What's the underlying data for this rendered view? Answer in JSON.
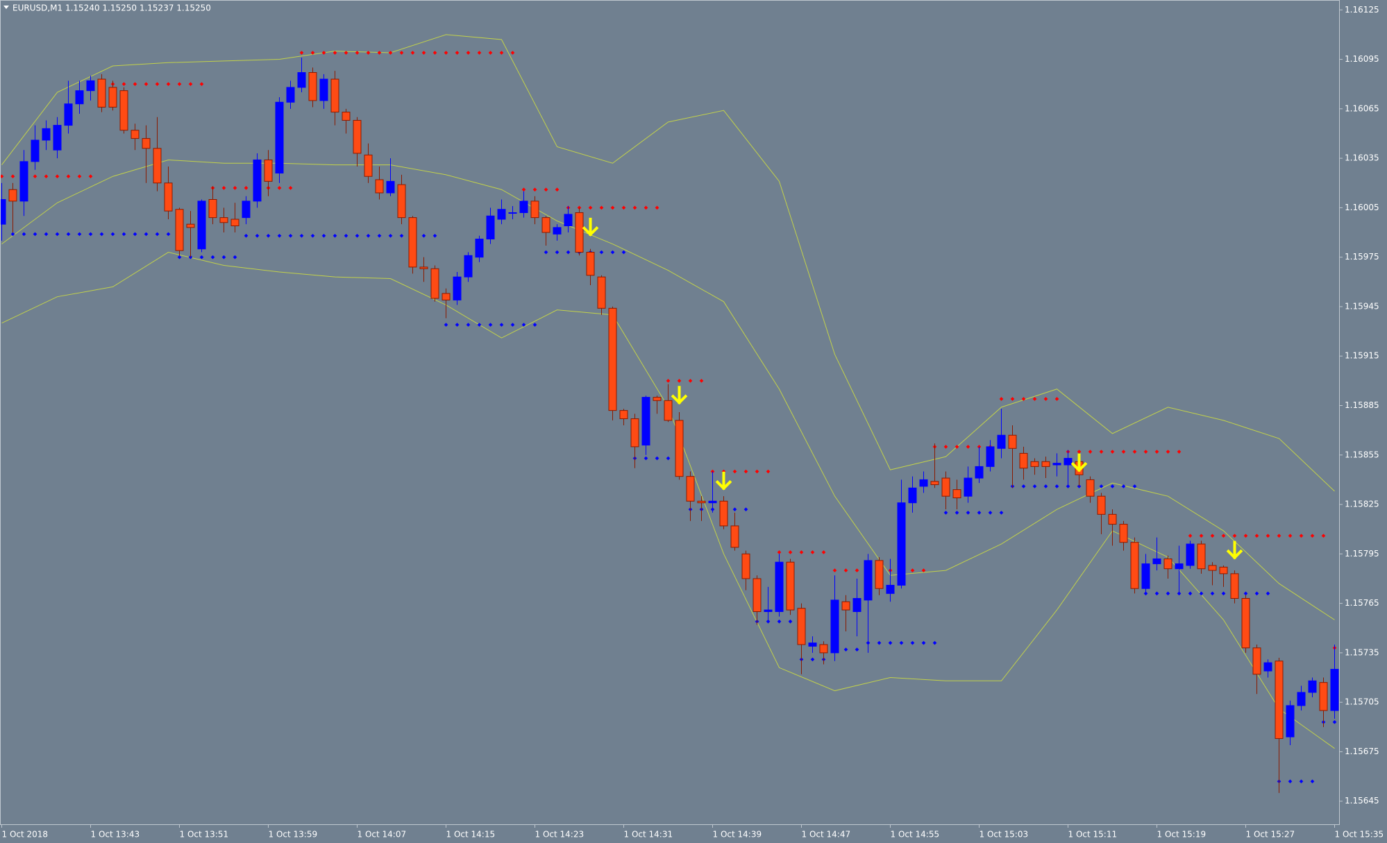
{
  "chart_data": {
    "type": "candlestick",
    "title": "EURUSD,M1  1.15240 1.15250 1.15237 1.15250",
    "categories": [
      "1 Oct 2018",
      null,
      null,
      null,
      null,
      null,
      null,
      null,
      "1 Oct 13:43",
      null,
      null,
      null,
      null,
      null,
      null,
      null,
      "1 Oct 13:51",
      null,
      null,
      null,
      null,
      null,
      null,
      null,
      "1 Oct 13:59",
      null,
      null,
      null,
      null,
      null,
      null,
      null,
      "1 Oct 14:07",
      null,
      null,
      null,
      null,
      null,
      null,
      null,
      "1 Oct 14:15",
      null,
      null,
      null,
      null,
      null,
      null,
      null,
      "1 Oct 14:23",
      null,
      null,
      null,
      null,
      null,
      null,
      null,
      "1 Oct 14:31",
      null,
      null,
      null,
      null,
      null,
      null,
      null,
      "1 Oct 14:39",
      null,
      null,
      null,
      null,
      null,
      null,
      null,
      "1 Oct 14:47",
      null,
      null,
      null,
      null,
      null,
      null,
      null,
      "1 Oct 14:55",
      null,
      null,
      null,
      null,
      null,
      null,
      null,
      "1 Oct 15:03",
      null,
      null,
      null,
      null,
      null,
      null,
      null,
      "1 Oct 15:11",
      null,
      null,
      null,
      null,
      null,
      null,
      null,
      "1 Oct 15:19",
      null,
      null,
      null,
      null,
      null,
      null,
      null,
      "1 Oct 15:27",
      null,
      null,
      null,
      null,
      null,
      null,
      null,
      "1 Oct 15:35"
    ],
    "open": [
      1.15995,
      1.16016,
      1.16009,
      1.16033,
      1.16046,
      1.1604,
      1.16055,
      1.16068,
      1.16076,
      1.16083,
      1.16078,
      1.16076,
      1.16052,
      1.16047,
      1.16041,
      1.1602,
      1.16004,
      1.15995,
      1.1598,
      1.1601,
      1.15999,
      1.15998,
      1.15999,
      1.16009,
      1.16034,
      1.16026,
      1.16069,
      1.16078,
      1.16087,
      1.1607,
      1.16083,
      1.16063,
      1.16058,
      1.16037,
      1.16022,
      1.16014,
      1.16019,
      1.15999,
      1.15969,
      1.15968,
      1.15953,
      1.15949,
      1.15963,
      1.15975,
      1.15986,
      1.15998,
      1.16002,
      1.16002,
      1.16009,
      1.15999,
      1.15989,
      1.15994,
      1.16002,
      1.15978,
      1.15963,
      1.15944,
      1.15882,
      1.15877,
      1.15861,
      1.1589,
      1.15888,
      1.15876,
      1.15842,
      1.15827,
      1.15826,
      1.15827,
      1.15812,
      1.15795,
      1.1578,
      1.1576,
      1.1576,
      1.1579,
      1.15762,
      1.15739,
      1.1574,
      1.15735,
      1.15766,
      1.1576,
      1.15767,
      1.15791,
      1.15771,
      1.15776,
      1.15826,
      1.15836,
      1.15839,
      1.15841,
      1.15834,
      1.1583,
      1.15841,
      1.15848,
      1.15859,
      1.15867,
      1.15856,
      1.15851,
      1.15851,
      1.15849,
      1.15849,
      1.15851,
      1.1584,
      1.1583,
      1.15819,
      1.15813,
      1.15802,
      1.15774,
      1.15789,
      1.15792,
      1.15786,
      1.15788,
      1.15801,
      1.15788,
      1.15787,
      1.15783,
      1.15768,
      1.15738,
      1.15724,
      1.1573,
      1.15684,
      1.15703,
      1.15711,
      1.15717,
      1.157
    ],
    "high": [
      1.1602,
      1.1602,
      1.1604,
      1.16055,
      1.16058,
      1.1606,
      1.16082,
      1.16082,
      1.16085,
      1.16086,
      1.16082,
      1.16078,
      1.16056,
      1.16055,
      1.1606,
      1.1603,
      1.16005,
      1.16003,
      1.1601,
      1.16018,
      1.16005,
      1.16008,
      1.16012,
      1.16038,
      1.1604,
      1.16072,
      1.16082,
      1.16096,
      1.1609,
      1.16086,
      1.16088,
      1.16065,
      1.1606,
      1.16044,
      1.1603,
      1.16035,
      1.16025,
      1.16,
      1.15975,
      1.1597,
      1.15956,
      1.15966,
      1.15978,
      1.15988,
      1.16005,
      1.1601,
      1.16006,
      1.16015,
      1.16012,
      1.16,
      1.15995,
      1.16006,
      1.16005,
      1.1598,
      1.15964,
      1.15945,
      1.15883,
      1.1588,
      1.15891,
      1.15891,
      1.15898,
      1.15881,
      1.15845,
      1.1583,
      1.15845,
      1.1583,
      1.1582,
      1.15797,
      1.15782,
      1.15775,
      1.15795,
      1.15792,
      1.15765,
      1.15745,
      1.15742,
      1.15782,
      1.1577,
      1.1578,
      1.15795,
      1.15793,
      1.15792,
      1.1584,
      1.15842,
      1.15845,
      1.15862,
      1.15845,
      1.1584,
      1.15848,
      1.1586,
      1.15864,
      1.15883,
      1.15873,
      1.1586,
      1.15853,
      1.15854,
      1.15856,
      1.15858,
      1.15856,
      1.15842,
      1.15832,
      1.15822,
      1.15815,
      1.15805,
      1.15795,
      1.15805,
      1.15794,
      1.158,
      1.15803,
      1.15803,
      1.1579,
      1.15788,
      1.15785,
      1.1577,
      1.1574,
      1.15731,
      1.15732,
      1.15706,
      1.15715,
      1.1572,
      1.1572,
      1.1574
    ],
    "low": [
      1.15985,
      1.1599,
      1.16,
      1.16028,
      1.1604,
      1.16035,
      1.1605,
      1.16062,
      1.1607,
      1.16063,
      1.16064,
      1.1605,
      1.1604,
      1.1602,
      1.16015,
      1.15998,
      1.15976,
      1.15975,
      1.15978,
      1.15995,
      1.1599,
      1.1599,
      1.15995,
      1.16005,
      1.16012,
      1.1602,
      1.16065,
      1.16075,
      1.16066,
      1.16065,
      1.16055,
      1.1605,
      1.1603,
      1.1602,
      1.1601,
      1.16012,
      1.15995,
      1.15965,
      1.1596,
      1.15948,
      1.15938,
      1.15946,
      1.1596,
      1.15972,
      1.15983,
      1.15995,
      1.15998,
      1.15999,
      1.15995,
      1.15982,
      1.15985,
      1.1599,
      1.15976,
      1.15958,
      1.1594,
      1.15876,
      1.15873,
      1.15847,
      1.15855,
      1.1588,
      1.15875,
      1.1584,
      1.15815,
      1.15815,
      1.1582,
      1.1581,
      1.15797,
      1.15773,
      1.15752,
      1.15755,
      1.15757,
      1.15758,
      1.15722,
      1.15735,
      1.15728,
      1.1573,
      1.15748,
      1.15745,
      1.15735,
      1.1577,
      1.15766,
      1.15774,
      1.1582,
      1.15832,
      1.15835,
      1.15822,
      1.15822,
      1.15826,
      1.15838,
      1.15845,
      1.15853,
      1.15835,
      1.1584,
      1.15843,
      1.15841,
      1.15842,
      1.15835,
      1.15836,
      1.15826,
      1.15807,
      1.158,
      1.15797,
      1.15771,
      1.15772,
      1.15785,
      1.1578,
      1.1577,
      1.15786,
      1.15783,
      1.15776,
      1.15775,
      1.15765,
      1.15735,
      1.1571,
      1.1572,
      1.1565,
      1.15679,
      1.157,
      1.15708,
      1.1569,
      1.15695
    ],
    "close": [
      1.1601,
      1.16009,
      1.16033,
      1.16046,
      1.16053,
      1.16055,
      1.16068,
      1.16076,
      1.16082,
      1.16066,
      1.16066,
      1.16052,
      1.16047,
      1.16041,
      1.1602,
      1.16003,
      1.15979,
      1.15993,
      1.16009,
      1.15999,
      1.15996,
      1.15994,
      1.16009,
      1.16034,
      1.16021,
      1.16069,
      1.16078,
      1.16087,
      1.1607,
      1.16083,
      1.16063,
      1.16058,
      1.16038,
      1.16024,
      1.16014,
      1.16021,
      1.15999,
      1.15969,
      1.15968,
      1.1595,
      1.15949,
      1.15963,
      1.15976,
      1.15986,
      1.16,
      1.16004,
      1.16002,
      1.16009,
      1.15999,
      1.1599,
      1.15993,
      1.16001,
      1.15978,
      1.15964,
      1.15944,
      1.15882,
      1.15877,
      1.1586,
      1.1589,
      1.15888,
      1.15876,
      1.15842,
      1.15827,
      1.15826,
      1.15827,
      1.15812,
      1.15799,
      1.1578,
      1.1576,
      1.15761,
      1.1579,
      1.15761,
      1.1574,
      1.15741,
      1.15735,
      1.15767,
      1.15761,
      1.15768,
      1.15791,
      1.15774,
      1.15776,
      1.15826,
      1.15835,
      1.1584,
      1.15837,
      1.1583,
      1.15829,
      1.15841,
      1.15848,
      1.1586,
      1.15867,
      1.15859,
      1.15847,
      1.15848,
      1.15848,
      1.1585,
      1.15853,
      1.15843,
      1.1583,
      1.15819,
      1.15813,
      1.15802,
      1.15774,
      1.15789,
      1.15792,
      1.15786,
      1.15789,
      1.15801,
      1.15786,
      1.15785,
      1.15783,
      1.15768,
      1.15738,
      1.15722,
      1.15729,
      1.15683,
      1.15703,
      1.15711,
      1.15718,
      1.157,
      1.15725
    ],
    "up_color": "#0000ff",
    "down_color": "#ff4b14",
    "bands": {
      "color": "#c3d24a",
      "x": [
        0,
        5,
        10,
        15,
        20,
        25,
        30,
        35,
        40,
        45,
        50,
        55,
        60,
        65,
        70,
        75,
        80,
        85,
        90,
        95,
        100,
        105,
        110,
        115,
        120
      ],
      "series": [
        {
          "values": [
            1.16031,
            1.16075,
            1.16091,
            1.16093,
            1.16094,
            1.16095,
            1.161,
            1.16099,
            1.1611,
            1.16107,
            1.16042,
            1.16032,
            1.16057,
            1.16064,
            1.16021,
            1.15916,
            1.15846,
            1.15854,
            1.15884,
            1.15895,
            1.15868,
            1.15884,
            1.15876,
            1.15865,
            1.15833
          ]
        },
        {
          "values": [
            1.15983,
            1.16008,
            1.16024,
            1.16034,
            1.16032,
            1.16032,
            1.16031,
            1.16031,
            1.16025,
            1.16016,
            1.15997,
            1.15983,
            1.15967,
            1.15948,
            1.15895,
            1.1583,
            1.15782,
            1.15785,
            1.15801,
            1.15822,
            1.15838,
            1.1583,
            1.15809,
            1.15777,
            1.15755
          ]
        },
        {
          "values": [
            1.15935,
            1.15951,
            1.15957,
            1.15978,
            1.1597,
            1.15966,
            1.15963,
            1.15962,
            1.15946,
            1.15926,
            1.15943,
            1.1594,
            1.15884,
            1.15795,
            1.15726,
            1.15712,
            1.1572,
            1.15718,
            1.15718,
            1.15761,
            1.15809,
            1.15793,
            1.15755,
            1.15701,
            1.15677
          ]
        }
      ]
    },
    "resistance": {
      "color": "#ff0000",
      "levels": [
        {
          "from": 0,
          "to": 8,
          "price": 1.16024
        },
        {
          "from": 9,
          "to": 18,
          "price": 1.1608
        },
        {
          "from": 19,
          "to": 26,
          "price": 1.16017
        },
        {
          "from": 27,
          "to": 46,
          "price": 1.16099
        },
        {
          "from": 47,
          "to": 50,
          "price": 1.16016
        },
        {
          "from": 51,
          "to": 59,
          "price": 1.16005
        },
        {
          "from": 60,
          "to": 63,
          "price": 1.159
        },
        {
          "from": 64,
          "to": 69,
          "price": 1.15845
        },
        {
          "from": 70,
          "to": 74,
          "price": 1.15796
        },
        {
          "from": 75,
          "to": 83,
          "price": 1.15785
        },
        {
          "from": 84,
          "to": 89,
          "price": 1.1586
        },
        {
          "from": 90,
          "to": 95,
          "price": 1.15889
        },
        {
          "from": 96,
          "to": 106,
          "price": 1.15857
        },
        {
          "from": 107,
          "to": 119,
          "price": 1.15806
        },
        {
          "from": 120,
          "to": 120,
          "price": 1.15738
        }
      ]
    },
    "support": {
      "color": "#0000ff",
      "levels": [
        {
          "from": 1,
          "to": 15,
          "price": 1.15989
        },
        {
          "from": 16,
          "to": 21,
          "price": 1.15975
        },
        {
          "from": 22,
          "to": 39,
          "price": 1.15988
        },
        {
          "from": 40,
          "to": 48,
          "price": 1.15934
        },
        {
          "from": 49,
          "to": 56,
          "price": 1.15978
        },
        {
          "from": 57,
          "to": 60,
          "price": 1.15853
        },
        {
          "from": 62,
          "to": 67,
          "price": 1.15822
        },
        {
          "from": 68,
          "to": 71,
          "price": 1.15754
        },
        {
          "from": 72,
          "to": 74,
          "price": 1.15731
        },
        {
          "from": 75,
          "to": 77,
          "price": 1.15737
        },
        {
          "from": 78,
          "to": 84,
          "price": 1.15741
        },
        {
          "from": 85,
          "to": 90,
          "price": 1.1582
        },
        {
          "from": 91,
          "to": 102,
          "price": 1.15836
        },
        {
          "from": 103,
          "to": 114,
          "price": 1.15771
        },
        {
          "from": 115,
          "to": 118,
          "price": 1.15657
        },
        {
          "from": 119,
          "to": 120,
          "price": 1.15693
        }
      ]
    },
    "signals": {
      "color": "#ffff00",
      "points": [
        {
          "bar": 53,
          "price": 1.15993
        },
        {
          "bar": 61,
          "price": 1.15891
        },
        {
          "bar": 65,
          "price": 1.15839
        },
        {
          "bar": 97,
          "price": 1.1585
        },
        {
          "bar": 111,
          "price": 1.15797
        }
      ]
    },
    "ylim": [
      1.15631,
      1.16131
    ],
    "yticks": [
      1.16125,
      1.16095,
      1.16065,
      1.16035,
      1.16005,
      1.15975,
      1.15945,
      1.15915,
      1.15885,
      1.15855,
      1.15825,
      1.15795,
      1.15765,
      1.15735,
      1.15705,
      1.15675,
      1.15645
    ],
    "background": "#708090"
  }
}
